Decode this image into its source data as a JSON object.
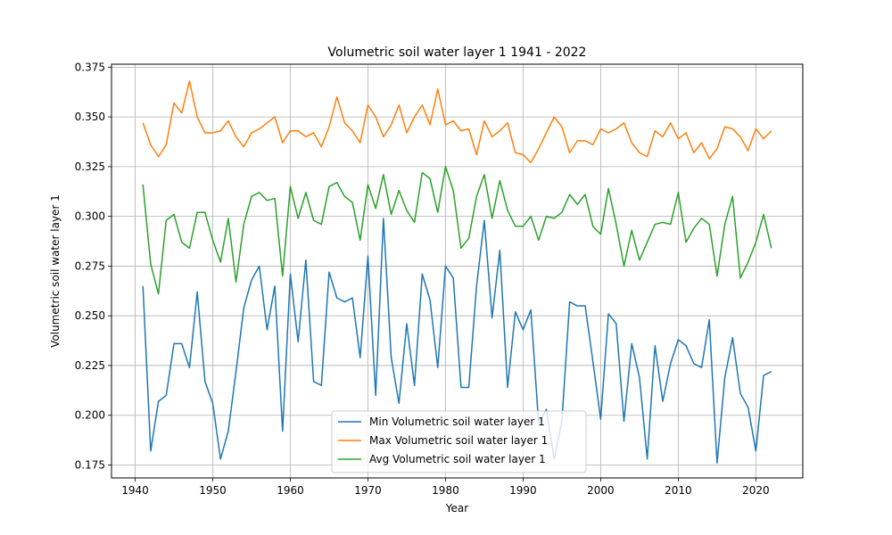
{
  "chart_data": {
    "type": "line",
    "title": "Volumetric soil water layer 1 1941 - 2022",
    "xlabel": "Year",
    "ylabel": "Volumetric soil water layer 1",
    "xlim": [
      1936.95,
      2026.05
    ],
    "ylim": [
      0.1685,
      0.3765
    ],
    "xticks": [
      1940,
      1950,
      1960,
      1970,
      1980,
      1990,
      2000,
      2010,
      2020
    ],
    "yticks": [
      0.175,
      0.2,
      0.225,
      0.25,
      0.275,
      0.3,
      0.325,
      0.35,
      0.375
    ],
    "ytick_labels": [
      "0.175",
      "0.200",
      "0.225",
      "0.250",
      "0.275",
      "0.300",
      "0.325",
      "0.350",
      "0.375"
    ],
    "grid": true,
    "legend_position": "lower-center",
    "x": [
      1941,
      1942,
      1943,
      1944,
      1945,
      1946,
      1947,
      1948,
      1949,
      1950,
      1951,
      1952,
      1953,
      1954,
      1955,
      1956,
      1957,
      1958,
      1959,
      1960,
      1961,
      1962,
      1963,
      1964,
      1965,
      1966,
      1967,
      1968,
      1969,
      1970,
      1971,
      1972,
      1973,
      1974,
      1975,
      1976,
      1977,
      1978,
      1979,
      1980,
      1981,
      1982,
      1983,
      1984,
      1985,
      1986,
      1987,
      1988,
      1989,
      1990,
      1991,
      1992,
      1993,
      1994,
      1995,
      1996,
      1997,
      1998,
      1999,
      2000,
      2001,
      2002,
      2003,
      2004,
      2005,
      2006,
      2007,
      2008,
      2009,
      2010,
      2011,
      2012,
      2013,
      2014,
      2015,
      2016,
      2017,
      2018,
      2019,
      2020,
      2021,
      2022
    ],
    "series": [
      {
        "name": "Min Volumetric soil water layer 1",
        "color": "#1f77b4",
        "values": [
          0.265,
          0.182,
          0.207,
          0.21,
          0.236,
          0.236,
          0.224,
          0.262,
          0.217,
          0.206,
          0.178,
          0.192,
          0.222,
          0.254,
          0.268,
          0.275,
          0.243,
          0.265,
          0.192,
          0.271,
          0.237,
          0.278,
          0.217,
          0.215,
          0.272,
          0.259,
          0.257,
          0.259,
          0.229,
          0.28,
          0.21,
          0.299,
          0.229,
          0.206,
          0.246,
          0.215,
          0.271,
          0.258,
          0.224,
          0.275,
          0.269,
          0.214,
          0.214,
          0.265,
          0.298,
          0.249,
          0.283,
          0.214,
          0.252,
          0.243,
          0.253,
          0.196,
          0.203,
          0.178,
          0.197,
          0.257,
          0.255,
          0.255,
          0.227,
          0.198,
          0.251,
          0.246,
          0.197,
          0.236,
          0.219,
          0.178,
          0.235,
          0.207,
          0.226,
          0.238,
          0.235,
          0.226,
          0.224,
          0.248,
          0.176,
          0.219,
          0.239,
          0.211,
          0.204,
          0.182,
          0.22,
          0.222
        ]
      },
      {
        "name": "Max Volumetric soil water layer 1",
        "color": "#ff7f0e",
        "values": [
          0.347,
          0.336,
          0.33,
          0.336,
          0.357,
          0.352,
          0.368,
          0.35,
          0.342,
          0.342,
          0.343,
          0.348,
          0.34,
          0.335,
          0.342,
          0.344,
          0.347,
          0.35,
          0.337,
          0.343,
          0.343,
          0.34,
          0.342,
          0.335,
          0.345,
          0.36,
          0.347,
          0.343,
          0.337,
          0.356,
          0.35,
          0.34,
          0.346,
          0.356,
          0.342,
          0.35,
          0.356,
          0.346,
          0.364,
          0.346,
          0.348,
          0.343,
          0.344,
          0.331,
          0.348,
          0.34,
          0.343,
          0.347,
          0.332,
          0.331,
          0.327,
          0.334,
          0.342,
          0.35,
          0.345,
          0.332,
          0.338,
          0.338,
          0.336,
          0.344,
          0.342,
          0.344,
          0.347,
          0.337,
          0.332,
          0.33,
          0.343,
          0.34,
          0.347,
          0.339,
          0.342,
          0.332,
          0.337,
          0.329,
          0.334,
          0.345,
          0.344,
          0.34,
          0.333,
          0.344,
          0.339,
          0.343
        ]
      },
      {
        "name": "Avg Volumetric soil water layer 1",
        "color": "#2ca02c",
        "values": [
          0.316,
          0.276,
          0.261,
          0.298,
          0.301,
          0.287,
          0.284,
          0.302,
          0.302,
          0.288,
          0.277,
          0.299,
          0.267,
          0.296,
          0.31,
          0.312,
          0.308,
          0.309,
          0.27,
          0.315,
          0.299,
          0.312,
          0.298,
          0.296,
          0.315,
          0.317,
          0.31,
          0.307,
          0.288,
          0.316,
          0.304,
          0.321,
          0.301,
          0.313,
          0.303,
          0.297,
          0.322,
          0.319,
          0.302,
          0.325,
          0.313,
          0.284,
          0.289,
          0.31,
          0.321,
          0.299,
          0.318,
          0.303,
          0.295,
          0.295,
          0.3,
          0.288,
          0.3,
          0.299,
          0.302,
          0.311,
          0.306,
          0.311,
          0.295,
          0.291,
          0.314,
          0.296,
          0.275,
          0.293,
          0.278,
          0.287,
          0.296,
          0.297,
          0.296,
          0.312,
          0.287,
          0.294,
          0.299,
          0.296,
          0.27,
          0.296,
          0.31,
          0.269,
          0.277,
          0.287,
          0.301,
          0.284
        ]
      }
    ]
  }
}
